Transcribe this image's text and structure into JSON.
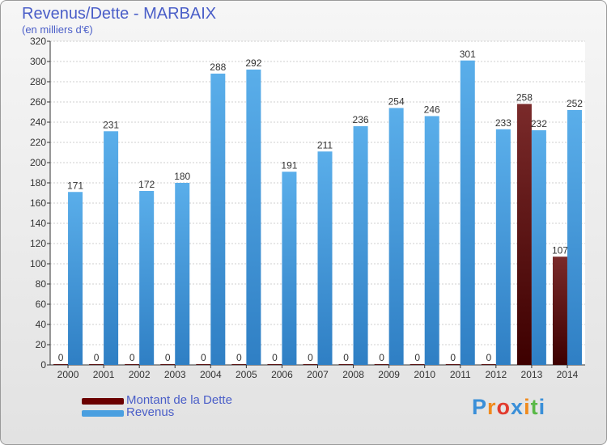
{
  "chart_data": {
    "type": "bar",
    "title": "Revenus/Dette - MARBAIX",
    "subtitle": "(en milliers d'€)",
    "xlabel": "",
    "ylabel": "",
    "categories": [
      "2000",
      "2001",
      "2002",
      "2003",
      "2004",
      "2005",
      "2006",
      "2007",
      "2008",
      "2009",
      "2010",
      "2011",
      "2012",
      "2013",
      "2014"
    ],
    "series": [
      {
        "name": "Montant de la Dette",
        "color": "#6b0000",
        "values": [
          0,
          0,
          0,
          0,
          0,
          0,
          0,
          0,
          0,
          0,
          0,
          0,
          0,
          258,
          107
        ]
      },
      {
        "name": "Revenus",
        "color": "#4a9fe0",
        "values": [
          171,
          231,
          172,
          180,
          288,
          292,
          191,
          211,
          236,
          254,
          246,
          301,
          233,
          232,
          252
        ]
      }
    ],
    "ylim": [
      0,
      320
    ],
    "yticks": [
      0,
      20,
      40,
      60,
      80,
      100,
      120,
      140,
      160,
      180,
      200,
      220,
      240,
      260,
      280,
      300,
      320
    ],
    "grid": true,
    "legend": "bottom-left"
  },
  "logo": {
    "text": "Proxiti",
    "letters": [
      "P",
      "r",
      "o",
      "x",
      "i",
      "t",
      "i"
    ],
    "colors": [
      "#3a8fd8",
      "#f08a1c",
      "#e23b2e",
      "#3a8fd8",
      "#f08a1c",
      "#59b947",
      "#3a8fd8"
    ]
  }
}
